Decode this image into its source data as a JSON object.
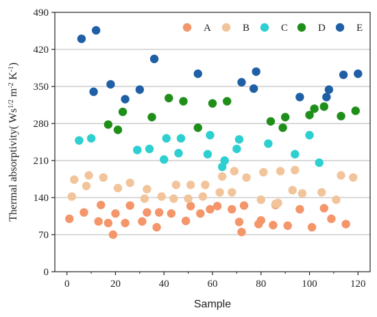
{
  "chart_data": {
    "type": "scatter",
    "xlabel": "Sample",
    "ylabel_main": "Thermal absorptivity( Ws",
    "ylabel_sup1": "1/2",
    "ylabel_mid": " m",
    "ylabel_sup2": "-2",
    "ylabel_mid2": " K",
    "ylabel_sup3": "-1",
    "ylabel_end": ")",
    "xlim": [
      -5,
      125
    ],
    "ylim": [
      0,
      490
    ],
    "xticks": [
      0,
      20,
      40,
      60,
      80,
      100,
      120
    ],
    "yticks": [
      0,
      70,
      140,
      210,
      280,
      350,
      420,
      490
    ],
    "grid": "horizontal",
    "legend_position": "top-right",
    "series": [
      {
        "name": "A",
        "color": "#f4956a",
        "points": [
          [
            1,
            100
          ],
          [
            7,
            112
          ],
          [
            13,
            95
          ],
          [
            14,
            126
          ],
          [
            17,
            92
          ],
          [
            19,
            70
          ],
          [
            20,
            110
          ],
          [
            24,
            92
          ],
          [
            26,
            125
          ],
          [
            31,
            95
          ],
          [
            33,
            112
          ],
          [
            37,
            84
          ],
          [
            38,
            112
          ],
          [
            43,
            110
          ],
          [
            49,
            96
          ],
          [
            51,
            124
          ],
          [
            55,
            110
          ],
          [
            59,
            118
          ],
          [
            62,
            124
          ],
          [
            68,
            118
          ],
          [
            71,
            94
          ],
          [
            72,
            75
          ],
          [
            73,
            125
          ],
          [
            79,
            90
          ],
          [
            80,
            97
          ],
          [
            85,
            88
          ],
          [
            86,
            126
          ],
          [
            91,
            87
          ],
          [
            96,
            118
          ],
          [
            101,
            84
          ],
          [
            106,
            120
          ],
          [
            109,
            100
          ],
          [
            115,
            90
          ]
        ]
      },
      {
        "name": "B",
        "color": "#f2c49b",
        "points": [
          [
            2,
            142
          ],
          [
            3,
            174
          ],
          [
            8,
            162
          ],
          [
            9,
            182
          ],
          [
            15,
            178
          ],
          [
            21,
            158
          ],
          [
            26,
            168
          ],
          [
            32,
            138
          ],
          [
            33,
            156
          ],
          [
            39,
            142
          ],
          [
            44,
            138
          ],
          [
            45,
            164
          ],
          [
            50,
            138
          ],
          [
            51,
            164
          ],
          [
            56,
            142
          ],
          [
            57,
            164
          ],
          [
            63,
            150
          ],
          [
            64,
            180
          ],
          [
            68,
            150
          ],
          [
            69,
            190
          ],
          [
            74,
            178
          ],
          [
            80,
            136
          ],
          [
            81,
            188
          ],
          [
            86,
            128
          ],
          [
            87,
            130
          ],
          [
            88,
            190
          ],
          [
            93,
            154
          ],
          [
            94,
            192
          ],
          [
            97,
            148
          ],
          [
            105,
            150
          ],
          [
            111,
            136
          ],
          [
            113,
            182
          ],
          [
            118,
            178
          ]
        ]
      },
      {
        "name": "C",
        "color": "#2ecfd0",
        "points": [
          [
            5,
            248
          ],
          [
            10,
            252
          ],
          [
            29,
            230
          ],
          [
            34,
            232
          ],
          [
            40,
            212
          ],
          [
            41,
            252
          ],
          [
            46,
            224
          ],
          [
            47,
            252
          ],
          [
            58,
            222
          ],
          [
            59,
            258
          ],
          [
            64,
            198
          ],
          [
            65,
            210
          ],
          [
            70,
            232
          ],
          [
            71,
            250
          ],
          [
            83,
            242
          ],
          [
            94,
            222
          ],
          [
            100,
            258
          ],
          [
            104,
            206
          ]
        ]
      },
      {
        "name": "D",
        "color": "#1f8f1a",
        "points": [
          [
            17,
            278
          ],
          [
            21,
            268
          ],
          [
            23,
            302
          ],
          [
            35,
            292
          ],
          [
            42,
            328
          ],
          [
            48,
            322
          ],
          [
            54,
            272
          ],
          [
            60,
            318
          ],
          [
            66,
            322
          ],
          [
            84,
            284
          ],
          [
            89,
            272
          ],
          [
            90,
            292
          ],
          [
            100,
            296
          ],
          [
            102,
            308
          ],
          [
            106,
            312
          ],
          [
            113,
            294
          ],
          [
            119,
            304
          ]
        ]
      },
      {
        "name": "E",
        "color": "#1f5fa6",
        "points": [
          [
            6,
            440
          ],
          [
            11,
            340
          ],
          [
            12,
            456
          ],
          [
            18,
            354
          ],
          [
            24,
            326
          ],
          [
            30,
            344
          ],
          [
            36,
            402
          ],
          [
            54,
            374
          ],
          [
            72,
            358
          ],
          [
            77,
            346
          ],
          [
            78,
            378
          ],
          [
            96,
            330
          ],
          [
            107,
            330
          ],
          [
            108,
            344
          ],
          [
            114,
            372
          ],
          [
            120,
            374
          ]
        ]
      }
    ]
  }
}
